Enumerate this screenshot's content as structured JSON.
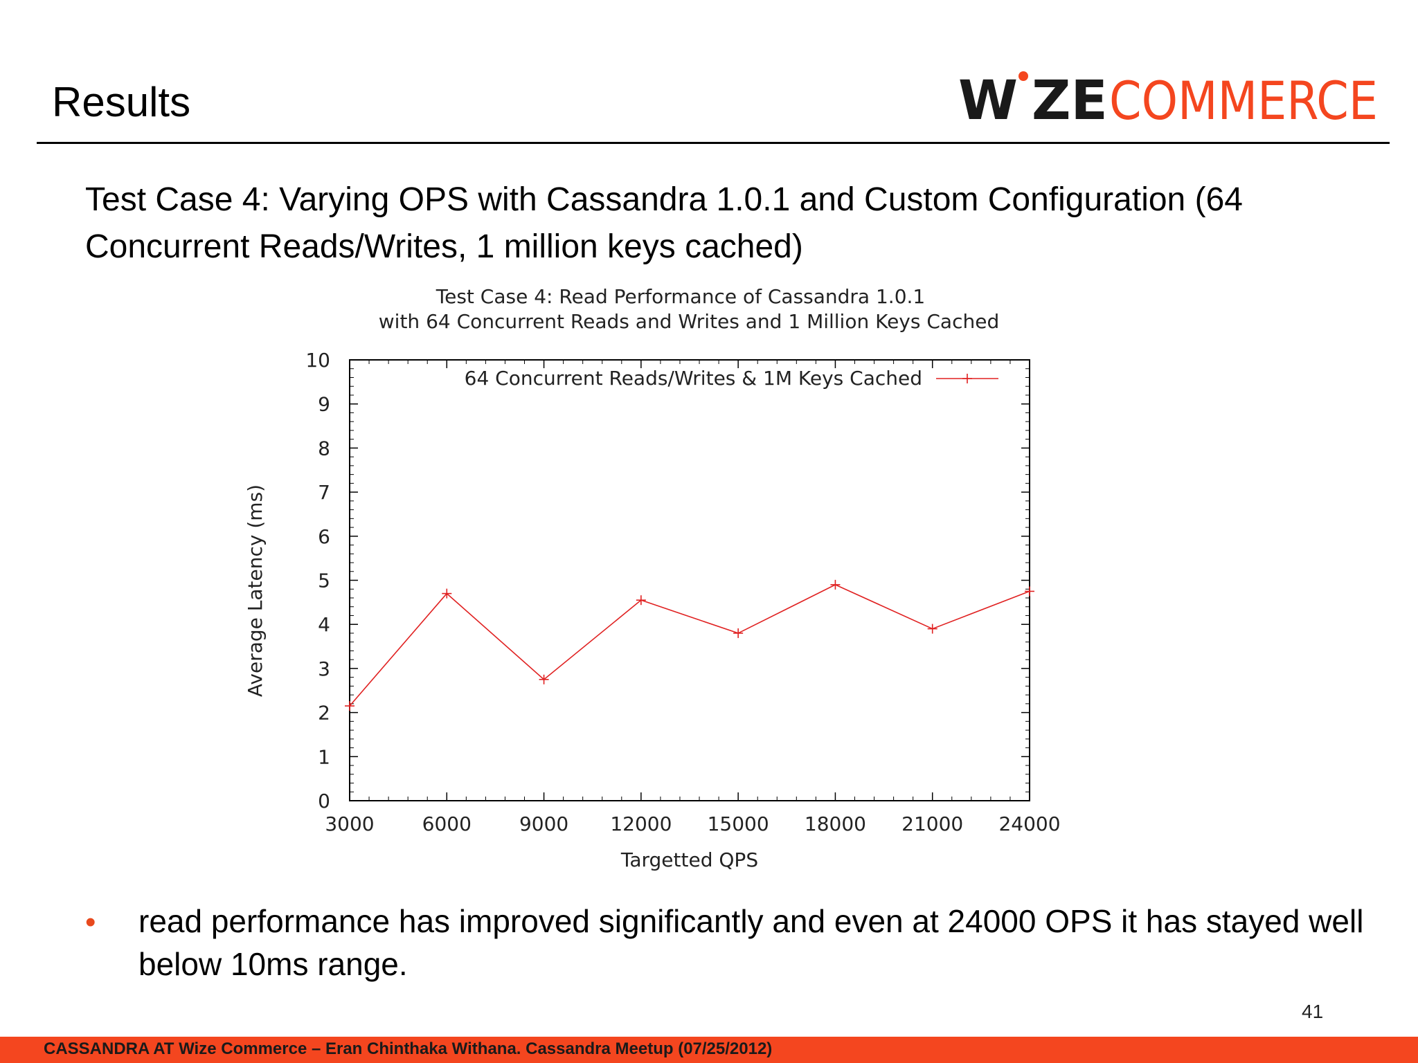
{
  "slide": {
    "title": "Results",
    "subtitle": "Test Case 4:  Varying OPS with Cassandra 1.0.1 and Custom Configuration (64 Concurrent Reads/Writes, 1 million keys cached)",
    "bullet": "read performance has improved significantly and even at 24000 OPS it has stayed well below 10ms range.",
    "page_number": "41",
    "footer": "CASSANDRA AT Wize Commerce – Eran Chinthaka Withana. Cassandra Meetup (07/25/2012)"
  },
  "logo": {
    "text_dark": "W",
    "text_dark_2": "ZE",
    "text_light": "COMMERCE",
    "dark_color": "#1a1a1a",
    "light_color": "#f4461f",
    "dot_color": "#f4461f"
  },
  "chart_data": {
    "type": "line",
    "title_line1": "Test Case 4: Read Performance of Cassandra 1.0.1",
    "title_line2": "with 64 Concurrent Reads and Writes and 1 Million Keys Cached",
    "xlabel": "Targetted QPS",
    "ylabel": "Average Latency (ms)",
    "xlim": [
      3000,
      24000
    ],
    "ylim": [
      0,
      10
    ],
    "xticks": [
      3000,
      6000,
      9000,
      12000,
      15000,
      18000,
      21000,
      24000
    ],
    "yticks": [
      0,
      1,
      2,
      3,
      4,
      5,
      6,
      7,
      8,
      9,
      10
    ],
    "grid": false,
    "legend_position": "top-right",
    "series": [
      {
        "name": "64 Concurrent Reads/Writes & 1M Keys Cached",
        "color": "#e02020",
        "marker": "plus",
        "x": [
          3000,
          6000,
          9000,
          12000,
          15000,
          18000,
          21000,
          24000
        ],
        "y": [
          2.15,
          4.7,
          2.75,
          4.55,
          3.8,
          4.9,
          3.9,
          4.75
        ]
      }
    ]
  }
}
